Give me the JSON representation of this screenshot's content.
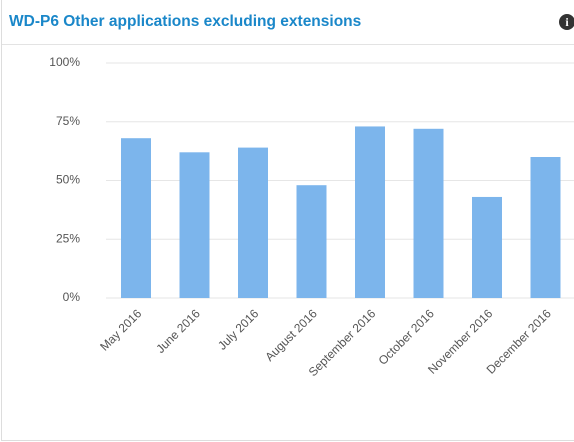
{
  "header": {
    "title": "WD-P6 Other applications excluding extensions"
  },
  "chart_data": {
    "type": "bar",
    "categories": [
      "May 2016",
      "June 2016",
      "July 2016",
      "August 2016",
      "September 2016",
      "October 2016",
      "November 2016",
      "December 2016"
    ],
    "values": [
      68,
      62,
      64,
      48,
      73,
      72,
      43,
      60
    ],
    "color": "#7cb5ec",
    "ylim": [
      0,
      100
    ],
    "yticks": [
      {
        "value": 0,
        "label": "0%"
      },
      {
        "value": 25,
        "label": "25%"
      },
      {
        "value": 50,
        "label": "50%"
      },
      {
        "value": 75,
        "label": "75%"
      },
      {
        "value": 100,
        "label": "100%"
      }
    ],
    "grid": true
  }
}
